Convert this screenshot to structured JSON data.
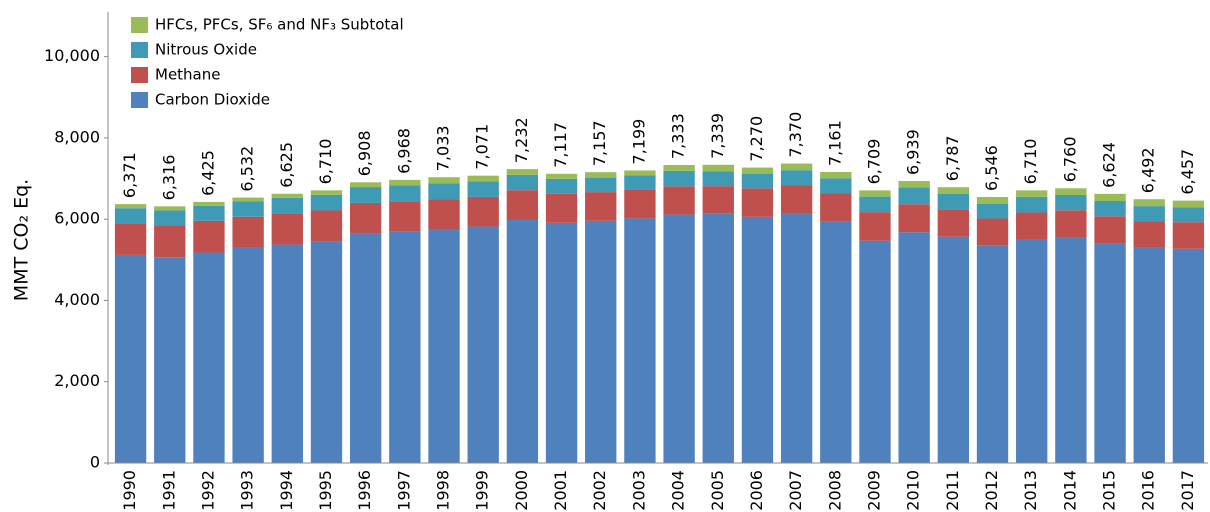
{
  "chart_data": {
    "type": "stacked-bar",
    "y_label": "MMT CO₂ Eq.",
    "categories": [
      "1990",
      "1991",
      "1992",
      "1993",
      "1994",
      "1995",
      "1996",
      "1997",
      "1998",
      "1999",
      "2000",
      "2001",
      "2002",
      "2003",
      "2004",
      "2005",
      "2006",
      "2007",
      "2008",
      "2009",
      "2010",
      "2011",
      "2012",
      "2013",
      "2014",
      "2015",
      "2016",
      "2017"
    ],
    "series": [
      {
        "name": "Carbon Dioxide",
        "color": "#4f81bd",
        "values": [
          5121,
          5062,
          5179,
          5293,
          5375,
          5442,
          5638,
          5689,
          5747,
          5818,
          5992,
          5910,
          5960,
          6019,
          6113,
          6132,
          6057,
          6130,
          5940,
          5471,
          5678,
          5569,
          5347,
          5501,
          5561,
          5412,
          5293,
          5271
        ]
      },
      {
        "name": "Methane",
        "color": "#c0504d",
        "values": [
          780,
          784,
          781,
          767,
          770,
          773,
          762,
          754,
          738,
          730,
          722,
          712,
          706,
          700,
          695,
          681,
          702,
          699,
          702,
          703,
          691,
          667,
          669,
          663,
          659,
          659,
          659,
          656
        ]
      },
      {
        "name": "Nitrous Oxide",
        "color": "#3f9ab5",
        "values": [
          370,
          369,
          371,
          383,
          380,
          383,
          390,
          393,
          396,
          385,
          377,
          371,
          357,
          355,
          380,
          361,
          362,
          377,
          364,
          381,
          409,
          392,
          366,
          386,
          375,
          376,
          370,
          361
        ]
      },
      {
        "name": "HFCs, PFCs, SF₆ and NF₃ Subtotal",
        "color": "#9bbb59",
        "values": [
          100,
          101,
          94,
          89,
          100,
          112,
          118,
          132,
          152,
          138,
          141,
          124,
          134,
          125,
          145,
          165,
          149,
          164,
          155,
          154,
          161,
          159,
          164,
          160,
          165,
          177,
          170,
          169
        ]
      }
    ],
    "totals": [
      6371,
      6316,
      6425,
      6532,
      6625,
      6710,
      6908,
      6968,
      7033,
      7071,
      7232,
      7117,
      7157,
      7199,
      7333,
      7339,
      7270,
      7370,
      7161,
      6709,
      6939,
      6787,
      6546,
      6710,
      6760,
      6624,
      6492,
      6457
    ],
    "total_labels": [
      "6,371",
      "6,316",
      "6,425",
      "6,532",
      "6,625",
      "6,710",
      "6,908",
      "6,968",
      "7,033",
      "7,071",
      "7,232",
      "7,117",
      "7,157",
      "7,199",
      "7,333",
      "7,339",
      "7,270",
      "7,370",
      "7,161",
      "6,709",
      "6,939",
      "6,787",
      "6,546",
      "6,710",
      "6,760",
      "6,624",
      "6,492",
      "6,457"
    ],
    "ylim": [
      0,
      11000
    ],
    "yticks": [
      0,
      {
        "value": 2000,
        "label": "2,000"
      },
      {
        "value": 4000,
        "label": "4,000"
      },
      {
        "value": 6000,
        "label": "6,000"
      },
      {
        "value": 8000,
        "label": "8,000"
      },
      {
        "value": 10000,
        "label": "10,000"
      }
    ],
    "grid": false
  }
}
